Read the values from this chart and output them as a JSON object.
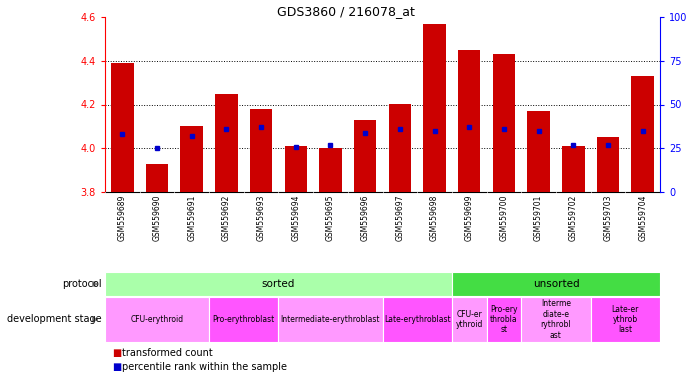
{
  "title": "GDS3860 / 216078_at",
  "samples": [
    "GSM559689",
    "GSM559690",
    "GSM559691",
    "GSM559692",
    "GSM559693",
    "GSM559694",
    "GSM559695",
    "GSM559696",
    "GSM559697",
    "GSM559698",
    "GSM559699",
    "GSM559700",
    "GSM559701",
    "GSM559702",
    "GSM559703",
    "GSM559704"
  ],
  "bar_values": [
    4.39,
    3.93,
    4.1,
    4.25,
    4.18,
    4.01,
    4.0,
    4.13,
    4.2,
    4.57,
    4.45,
    4.43,
    4.17,
    4.01,
    4.05,
    4.33
  ],
  "percentile_values": [
    33,
    25,
    32,
    36,
    37,
    26,
    27,
    34,
    36,
    35,
    37,
    36,
    35,
    27,
    27,
    35
  ],
  "bar_color": "#cc0000",
  "dot_color": "#0000cc",
  "ylim_left": [
    3.8,
    4.6
  ],
  "ylim_right": [
    0,
    100
  ],
  "yticks_left": [
    3.8,
    4.0,
    4.2,
    4.4,
    4.6
  ],
  "yticks_right": [
    0,
    25,
    50,
    75,
    100
  ],
  "grid_values": [
    4.0,
    4.2,
    4.4
  ],
  "protocol": [
    {
      "label": "sorted",
      "start": 0,
      "end": 10,
      "color": "#aaffaa"
    },
    {
      "label": "unsorted",
      "start": 10,
      "end": 16,
      "color": "#44dd44"
    }
  ],
  "dev_stages": [
    {
      "label": "CFU-erythroid",
      "start": 0,
      "end": 3,
      "color": "#ff99ff"
    },
    {
      "label": "Pro-erythroblast",
      "start": 3,
      "end": 5,
      "color": "#ff55ff"
    },
    {
      "label": "Intermediate-erythroblast",
      "start": 5,
      "end": 8,
      "color": "#ff99ff"
    },
    {
      "label": "Late-erythroblast",
      "start": 8,
      "end": 10,
      "color": "#ff55ff"
    },
    {
      "label": "CFU-er\nythroid",
      "start": 10,
      "end": 11,
      "color": "#ff99ff"
    },
    {
      "label": "Pro-ery\nthrobla\nst",
      "start": 11,
      "end": 12,
      "color": "#ff55ff"
    },
    {
      "label": "Interme\ndiate-e\nrythrobl\nast",
      "start": 12,
      "end": 14,
      "color": "#ff99ff"
    },
    {
      "label": "Late-er\nythrob\nlast",
      "start": 14,
      "end": 16,
      "color": "#ff55ff"
    }
  ],
  "legend_items": [
    {
      "label": "transformed count",
      "color": "#cc0000",
      "marker": "s"
    },
    {
      "label": "percentile rank within the sample",
      "color": "#0000cc",
      "marker": "s"
    }
  ],
  "bar_bottom": 3.8,
  "sample_bg": "#cccccc",
  "plot_bg": "#ffffff"
}
